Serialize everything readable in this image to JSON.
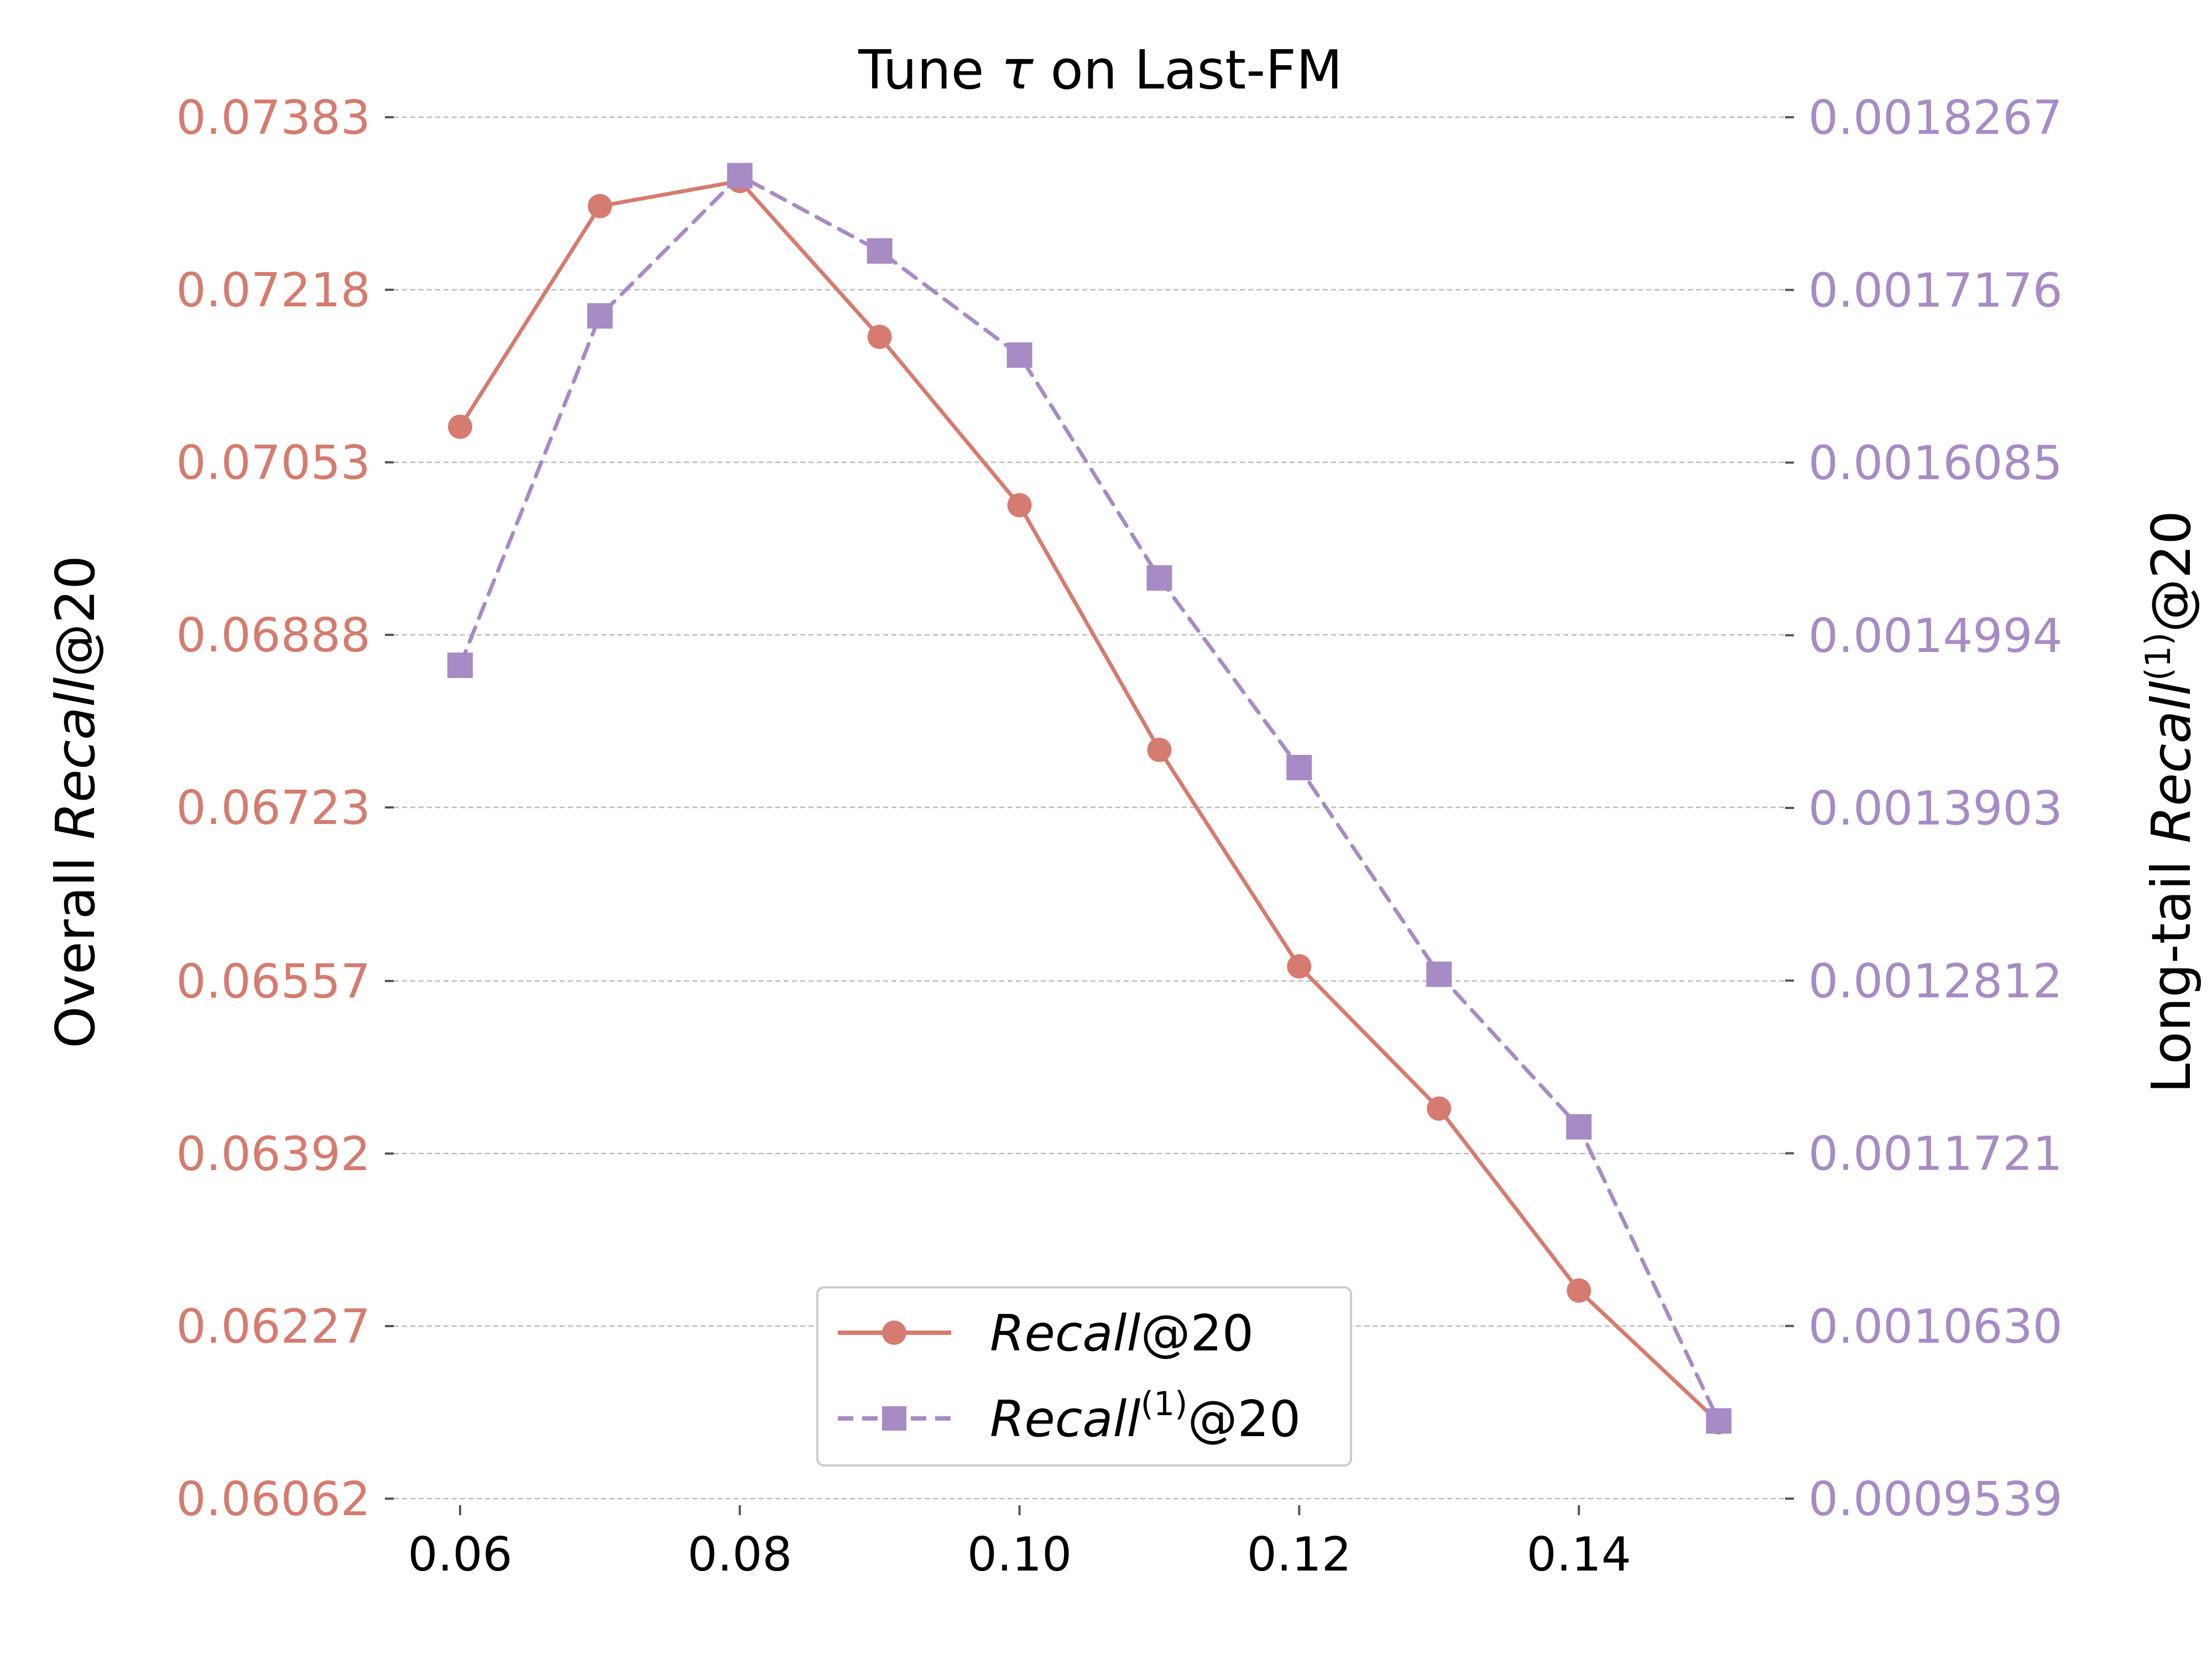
{
  "chart_data": {
    "type": "line",
    "title": "Tune τ on Last-FM",
    "title_parts": {
      "prefix": "Tune ",
      "symbol": "τ",
      "suffix": " on Last-FM"
    },
    "x": [
      0.06,
      0.07,
      0.08,
      0.09,
      0.1,
      0.11,
      0.12,
      0.13,
      0.14,
      0.15
    ],
    "xlim": [
      0.06,
      0.15
    ],
    "x_ticks": [
      0.06,
      0.08,
      0.1,
      0.12,
      0.14
    ],
    "x_tick_labels": [
      "0.06",
      "0.08",
      "0.10",
      "0.12",
      "0.14"
    ],
    "left_axis": {
      "label_prefix": "Overall  ",
      "label_italic": "Recall",
      "label_suffix": "@20",
      "ylim": [
        0.06062,
        0.07383
      ],
      "ticks": [
        "0.07383",
        "0.07218",
        "0.07053",
        "0.06888",
        "0.06723",
        "0.06557",
        "0.06392",
        "0.06227",
        "0.06062"
      ],
      "tick_values": [
        0.07383,
        0.07218,
        0.07053,
        0.06888,
        0.06723,
        0.06557,
        0.06392,
        0.06227,
        0.06062
      ],
      "color": "#d57b6f"
    },
    "right_axis": {
      "label_prefix": "Long-tail  ",
      "label_italic": "Recall",
      "label_sup": "(1)",
      "label_suffix": "@20",
      "ylim": [
        0.0009539,
        0.0018267
      ],
      "ticks": [
        "0.0018267",
        "0.0017176",
        "0.0016085",
        "0.0014994",
        "0.0013903",
        "0.0012812",
        "0.0011721",
        "0.0010630",
        "0.0009539"
      ],
      "tick_values": [
        0.0018267,
        0.0017176,
        0.0016085,
        0.0014994,
        0.0013903,
        0.0012812,
        0.0011721,
        0.001063,
        0.0009539
      ],
      "color": "#a78bc4"
    },
    "series": [
      {
        "name": "Recall@20",
        "name_italic": "Recall",
        "name_suffix": "@20",
        "axis": "left",
        "color": "#d57b6f",
        "line_style": "solid",
        "marker": "circle",
        "values": [
          0.07087,
          0.07298,
          0.07322,
          0.07173,
          0.07012,
          0.06778,
          0.06571,
          0.06435,
          0.06261,
          0.06135
        ]
      },
      {
        "name": "Recall(1)@20",
        "name_italic": "Recall",
        "name_sup": "(1)",
        "name_suffix": "@20",
        "axis": "right",
        "color": "#a78bc4",
        "line_style": "dashed",
        "marker": "square",
        "values": [
          0.0014804,
          0.0017012,
          0.0017898,
          0.0017422,
          0.0016764,
          0.0015356,
          0.0014158,
          0.0012852,
          0.0011888,
          0.001003
        ]
      }
    ],
    "grid": "horizontal dashed",
    "legend_position": "lower-center"
  }
}
